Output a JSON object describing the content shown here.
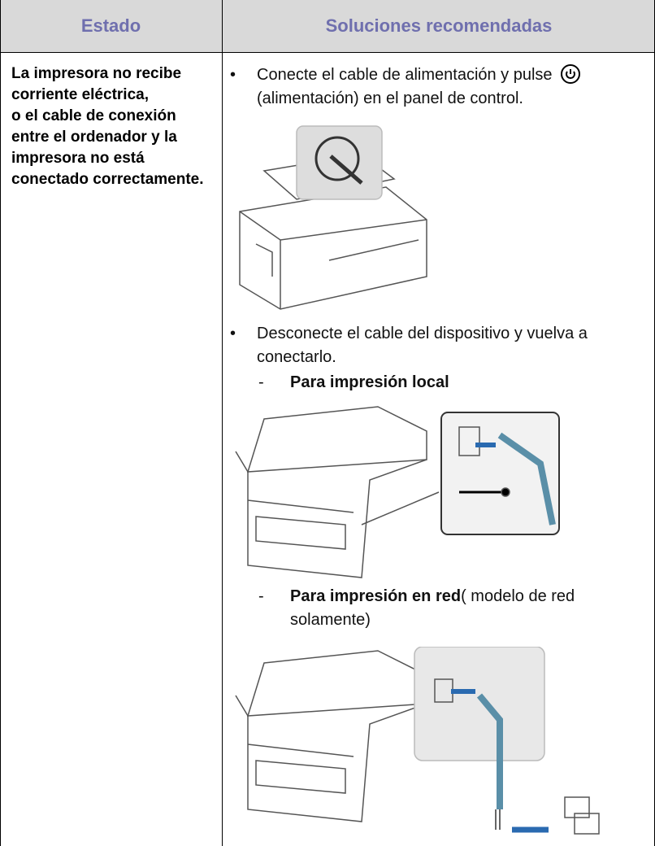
{
  "table": {
    "headers": [
      "Estado",
      "Soluciones recomendadas"
    ],
    "rows": [
      {
        "estado": [
          "La impresora no recibe corriente eléctrica,",
          "o el cable de conexión entre el ordenador y la impresora no está conectado correctamente."
        ],
        "soluciones": [
          {
            "text_before": "Conecte el cable de alimentación y pulse",
            "text_after": "(alimentación) en el panel de control."
          },
          {
            "text": "Desconecte el cable del dispositivo y vuelva a conectarlo.",
            "subitems": [
              {
                "bold": "Para impresión local"
              },
              {
                "bold": "Para impresión en red",
                "rest": "( modelo de red solamente)"
              }
            ]
          }
        ]
      }
    ]
  }
}
